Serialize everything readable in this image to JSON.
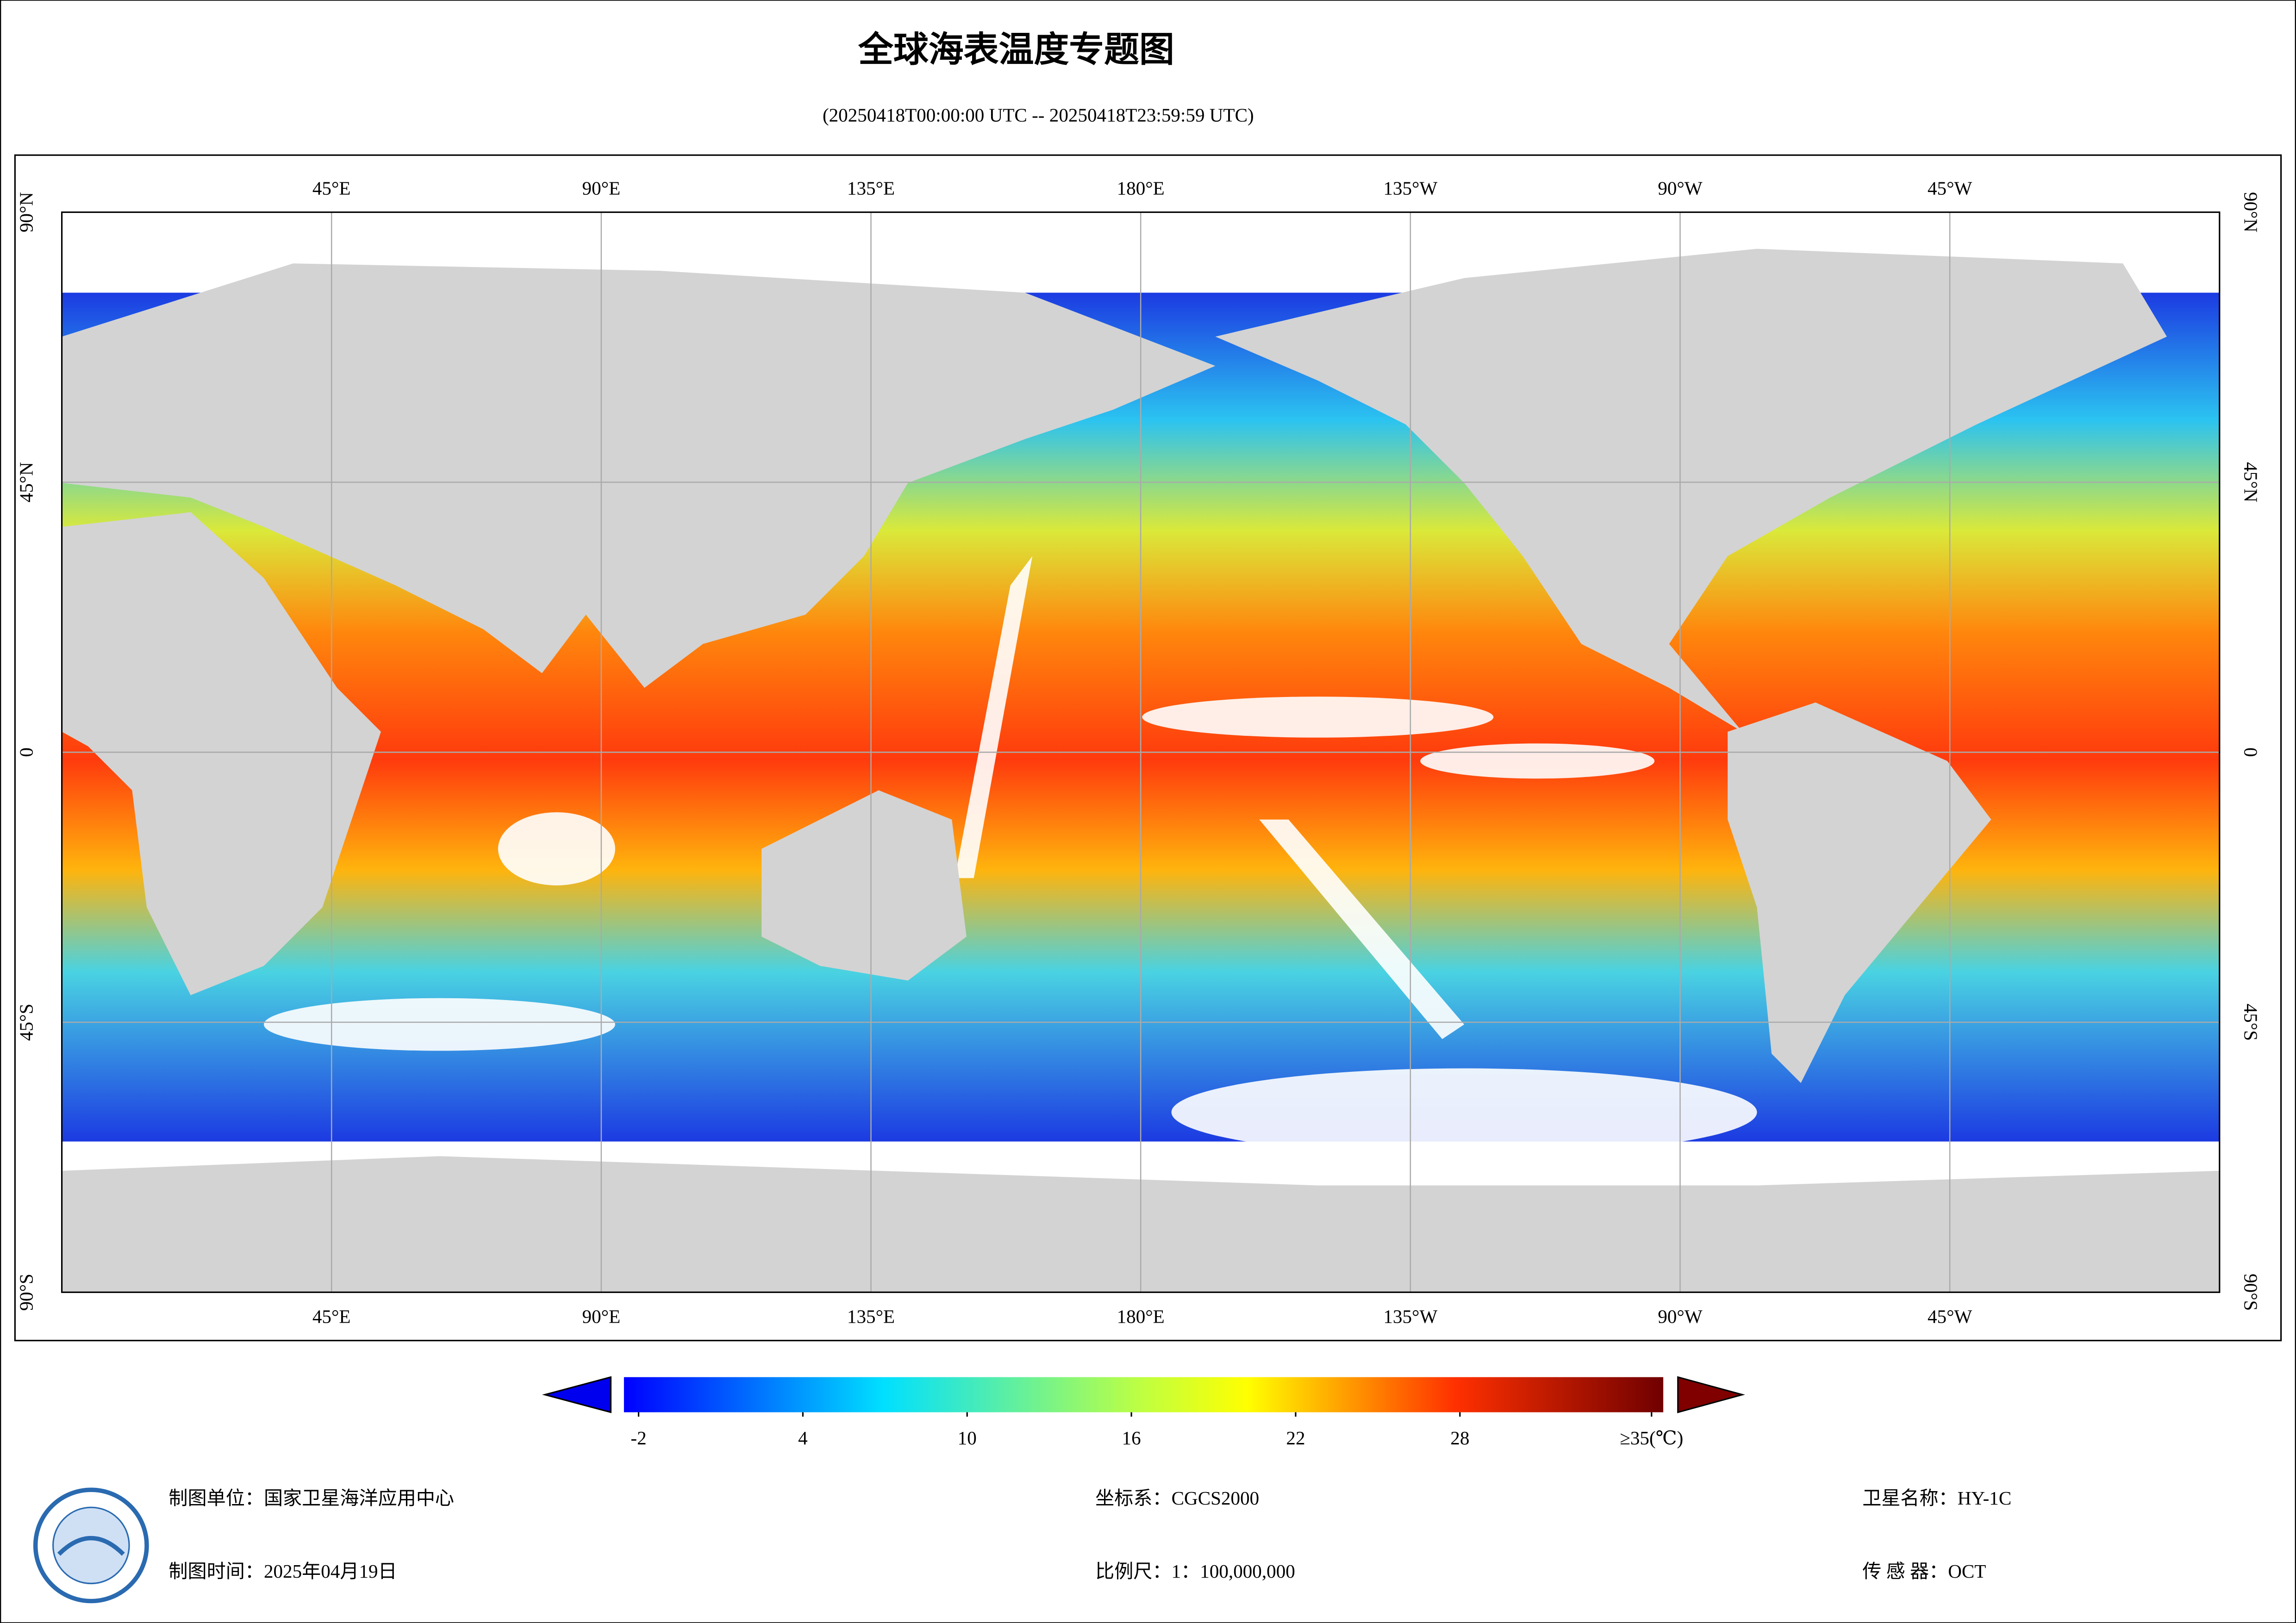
{
  "title": "全球海表温度专题图",
  "subtitle": "(20250418T00:00:00 UTC -- 20250418T23:59:59 UTC)",
  "map": {
    "lon_range": [
      0,
      360
    ],
    "lat_range": [
      90,
      -90
    ],
    "lon_ticks": [
      {
        "value": 45,
        "label": "45°E"
      },
      {
        "value": 90,
        "label": "90°E"
      },
      {
        "value": 135,
        "label": "135°E"
      },
      {
        "value": 180,
        "label": "180°E"
      },
      {
        "value": 225,
        "label": "135°W"
      },
      {
        "value": 270,
        "label": "90°W"
      },
      {
        "value": 315,
        "label": "45°W"
      }
    ],
    "lat_ticks": [
      {
        "value": 90,
        "label": "90°N"
      },
      {
        "value": 45,
        "label": "45°N"
      },
      0,
      {
        "value": -45,
        "label": "45°S"
      },
      {
        "value": -90,
        "label": "90°S"
      }
    ]
  },
  "colorbar": {
    "range": [
      -2,
      35
    ],
    "ticks": [
      -2,
      4,
      10,
      16,
      22,
      28,
      {
        "value": 35,
        "label": "≥35(℃)"
      }
    ]
  },
  "footer": {
    "unit": "制图单位：国家卫星海洋应用中心",
    "time": "制图时间：2025年04月19日",
    "crs": "坐标系：CGCS2000",
    "scale": "比例尺：1：100,000,000",
    "satellite": "卫星名称：HY-1C",
    "sensor": "传 感 器：OCT"
  }
}
